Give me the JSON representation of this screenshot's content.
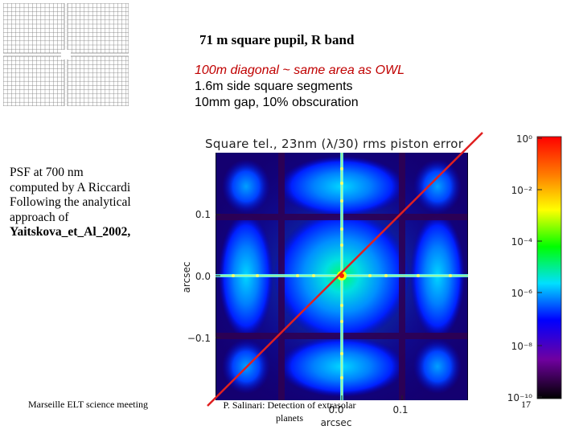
{
  "slide": {
    "title": "71 m square pupil, R band",
    "description": [
      "100m diagonal ~ same area as OWL",
      "1.6m side square segments",
      "10mm gap, 10% obscuration"
    ],
    "psf_note": [
      "PSF at 700 nm",
      "computed by A Riccardi",
      "Following the analytical",
      "approach of",
      "Yaitskova_et_Al_2002,"
    ],
    "footer": {
      "left": "Marseille ELT science meeting",
      "middle": "P. Salinari: Detection of extrasolar planets",
      "right": "17"
    }
  },
  "plot": {
    "title": "Square tel., 23nm (λ/30) rms piston error",
    "y_label": "arcsec",
    "x_label": "arcsec",
    "y_ticks": [
      "0.1",
      "0.0",
      "−0.1"
    ],
    "x_ticks": [
      "0.0",
      "0.1"
    ],
    "colorbar_ticks": [
      "10⁰",
      "10⁻²",
      "10⁻⁴",
      "10⁻⁶",
      "10⁻⁸",
      "10⁻¹⁰"
    ],
    "diagonal_line_color": "#e02020",
    "colormap": [
      "#000000",
      "#6a0080",
      "#0000ff",
      "#00c8ff",
      "#00ff00",
      "#ffff00",
      "#ff0000"
    ]
  }
}
